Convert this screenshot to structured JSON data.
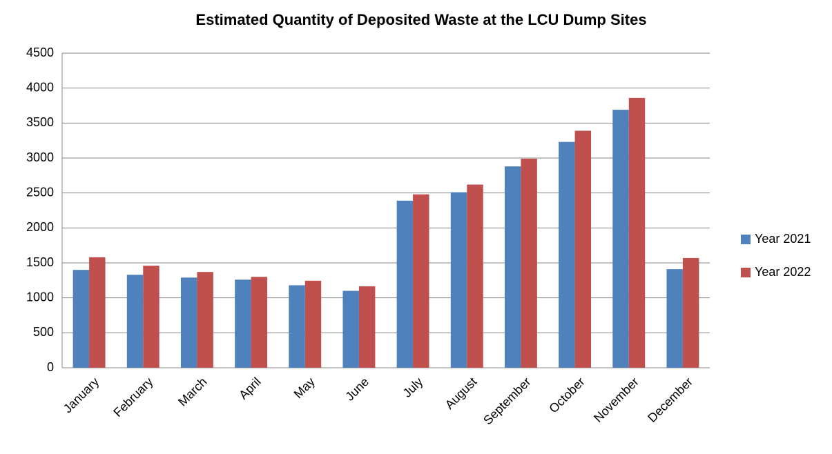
{
  "chart_data": {
    "type": "bar",
    "title": "Estimated Quantity of Deposited Waste at the LCU Dump Sites",
    "categories": [
      "January",
      "February",
      "March",
      "April",
      "May",
      "June",
      "July",
      "August",
      "September",
      "October",
      "November",
      "December"
    ],
    "series": [
      {
        "name": "Year 2021",
        "color": "#4f81bd",
        "values": [
          1400,
          1330,
          1290,
          1260,
          1180,
          1100,
          2390,
          2510,
          2880,
          3230,
          3690,
          1410
        ]
      },
      {
        "name": "Year 2022",
        "color": "#c0504d",
        "values": [
          1580,
          1460,
          1370,
          1300,
          1245,
          1165,
          2480,
          2620,
          2990,
          3390,
          3860,
          1570
        ]
      }
    ],
    "ylim": [
      0,
      4500
    ],
    "yticks": [
      0,
      500,
      1000,
      1500,
      2000,
      2500,
      3000,
      3500,
      4000,
      4500
    ],
    "grid": true,
    "legend": "right"
  }
}
